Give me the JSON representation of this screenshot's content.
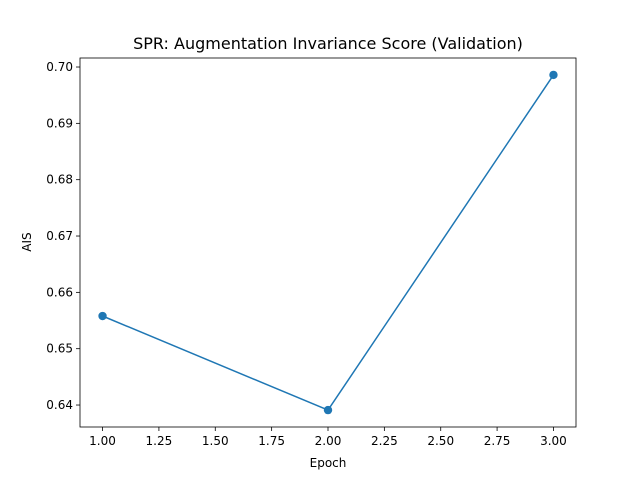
{
  "chart_data": {
    "type": "line",
    "title": "SPR: Augmentation Invariance Score (Validation)",
    "xlabel": "Epoch",
    "ylabel": "AIS",
    "x": [
      1,
      2,
      3
    ],
    "series": [
      {
        "values": [
          0.6558,
          0.6391,
          0.6986
        ],
        "color": "#1f77b4",
        "marker": "circle"
      }
    ],
    "xlim": [
      0.9,
      3.1
    ],
    "ylim": [
      0.6361,
      0.7016
    ],
    "xticks": [
      "1.00",
      "1.25",
      "1.50",
      "1.75",
      "2.00",
      "2.25",
      "2.50",
      "2.75",
      "3.00"
    ],
    "yticks": [
      "0.64",
      "0.65",
      "0.66",
      "0.67",
      "0.68",
      "0.69",
      "0.70"
    ],
    "grid": false,
    "legend": "none"
  }
}
